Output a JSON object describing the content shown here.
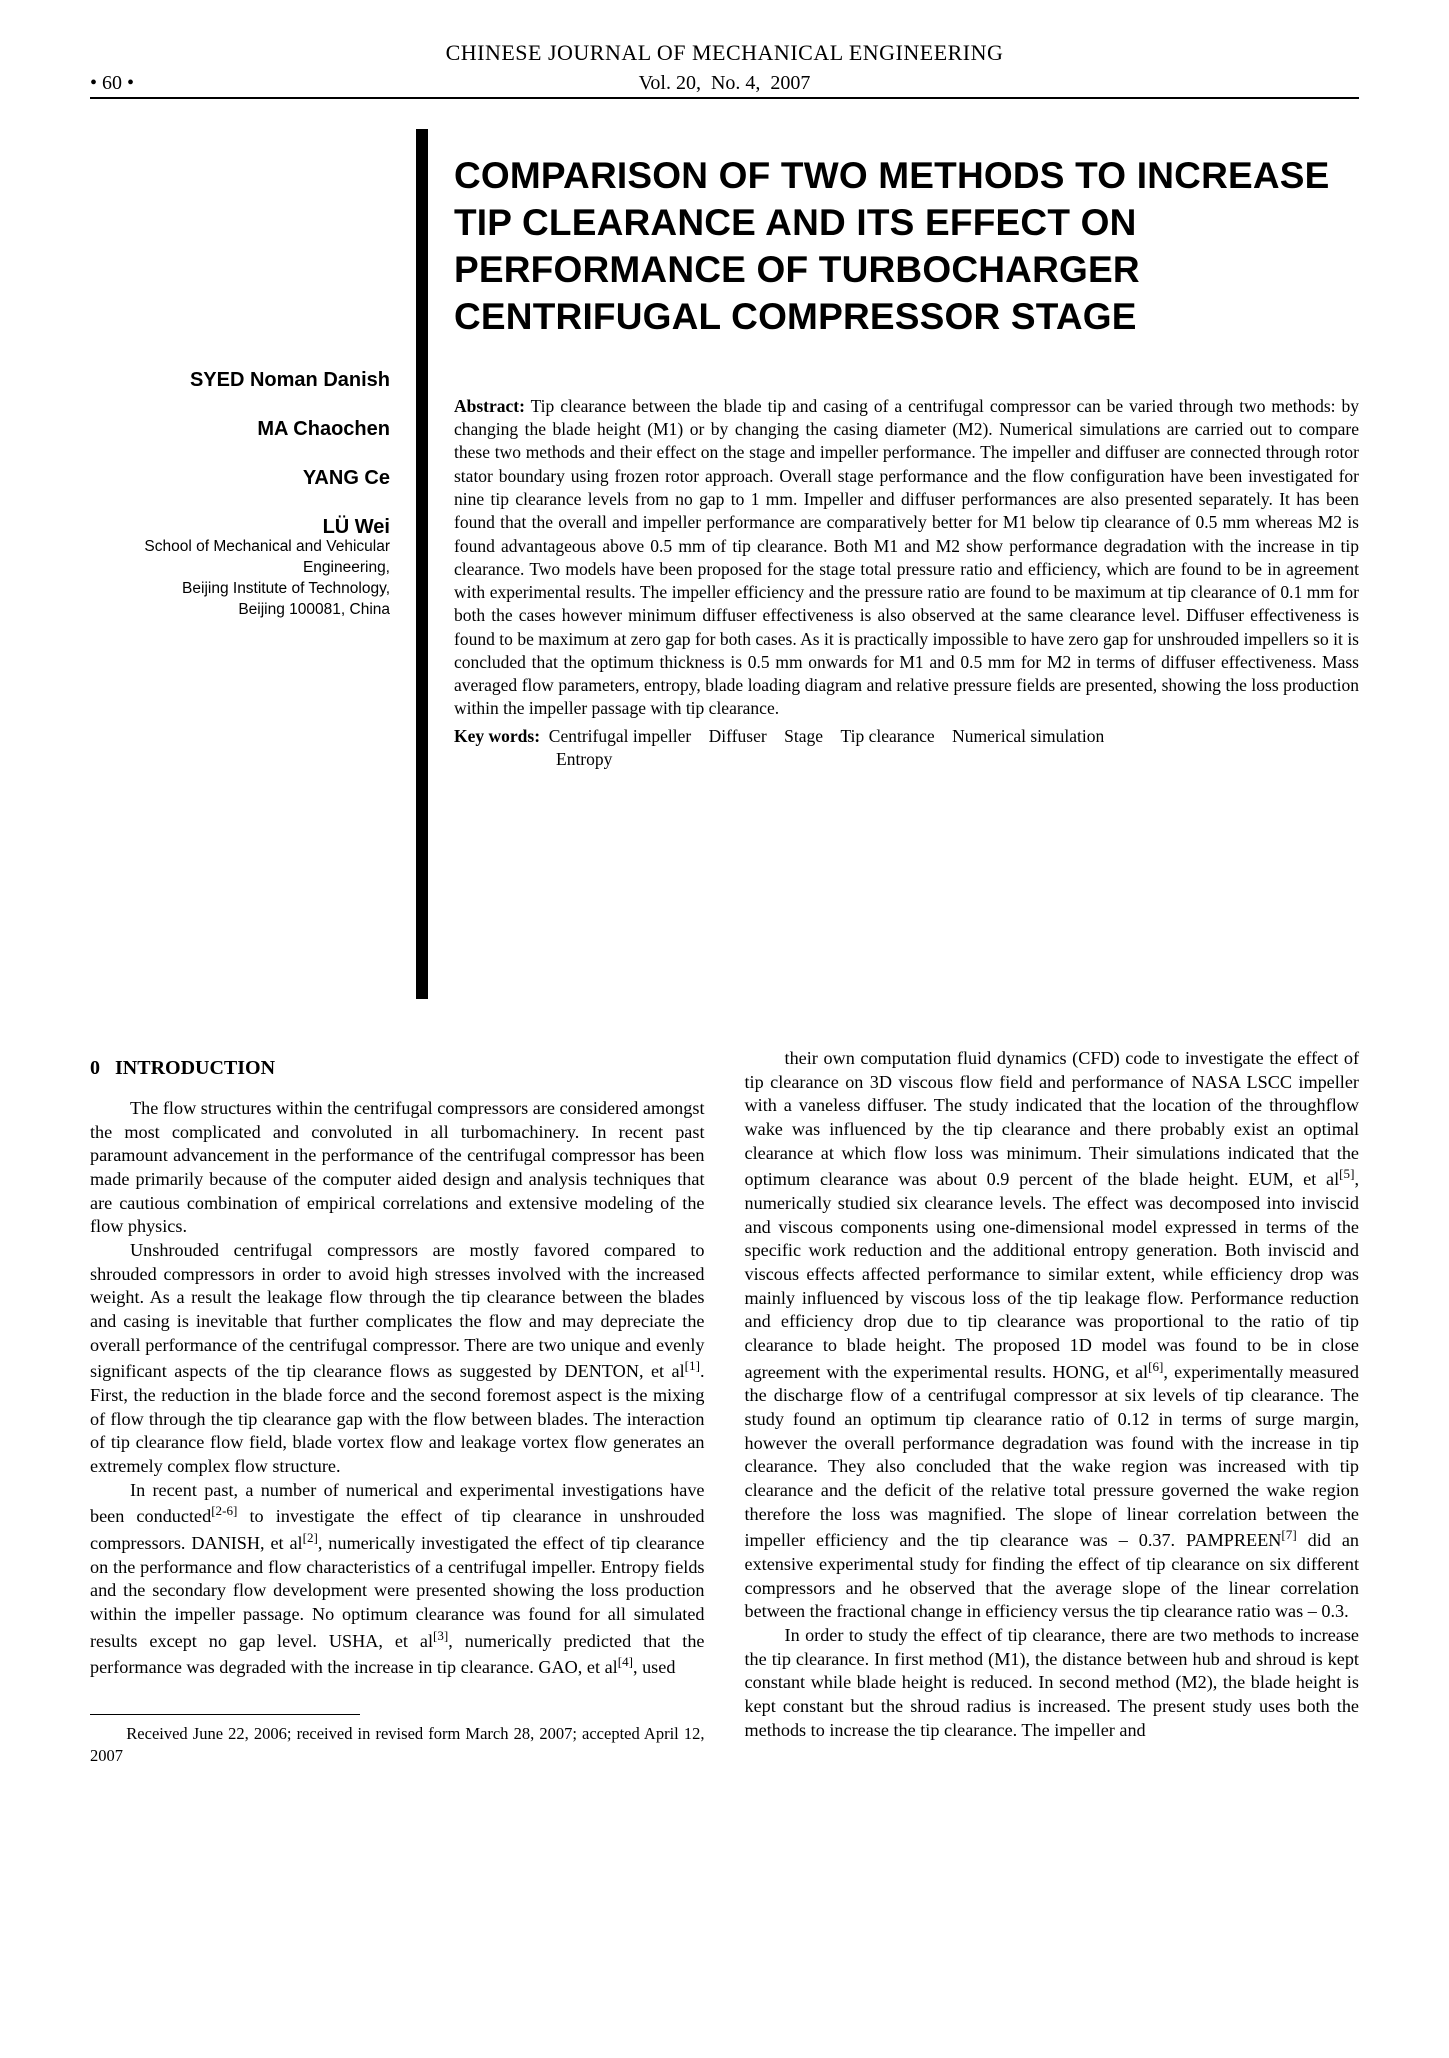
{
  "header": {
    "journal": "CHINESE JOURNAL OF MECHANICAL ENGINEERING",
    "page": "• 60 •",
    "volume": "Vol. 20,  No. 4,  2007"
  },
  "authors": {
    "a1": "SYED Noman Danish",
    "a2": "MA Chaochen",
    "a3": "YANG Ce",
    "a4": "LÜ Wei",
    "affil1": "School of Mechanical and Vehicular",
    "affil2": "Engineering,",
    "affil3": "Beijing Institute of Technology,",
    "affil4": "Beijing 100081, China"
  },
  "title": "COMPARISON OF TWO METHODS TO INCREASE TIP CLEARANCE AND ITS EFFECT ON PERFORMANCE OF TURBOCHARGER CENTRIFUGAL COMPRESSOR STAGE",
  "abstract": {
    "label": "Abstract:",
    "text": " Tip clearance between the blade tip and casing of a centrifugal compressor can be varied through two methods: by changing the blade height (M1) or by changing the casing diameter (M2). Numerical simulations are carried out to compare these two methods and their effect on the stage and impeller performance. The impeller and diffuser are connected through rotor stator boundary using frozen rotor approach. Overall stage performance and the flow configuration have been investigated for nine tip clearance levels from no gap to 1 mm. Impeller and diffuser performances are also presented separately. It has been found that the overall and impeller performance are comparatively better for M1 below tip clearance of 0.5 mm whereas M2 is found advantageous above 0.5 mm of tip clearance. Both M1 and M2 show performance degradation with the increase in tip clearance. Two models have been proposed for the stage total pressure ratio and efficiency, which are found to be in agreement with experimental results. The impeller efficiency and the pressure ratio are found to be maximum at tip clearance of 0.1 mm for both the cases however minimum diffuser effectiveness is also observed at the same clearance level. Diffuser effectiveness is found to be maximum at zero gap for both cases. As it is practically impossible to have zero gap for unshrouded impellers so it is concluded that the optimum thickness is 0.5 mm onwards for M1 and 0.5 mm for M2 in terms of diffuser effectiveness. Mass averaged flow parameters, entropy, blade loading diagram and relative pressure fields are presented, showing the loss production within the impeller passage with tip clearance."
  },
  "keywords": {
    "label": "Key words:",
    "line1": "  Centrifugal impeller    Diffuser    Stage    Tip clearance    Numerical simulation",
    "line2": "Entropy"
  },
  "section": {
    "num": "0",
    "heading": "INTRODUCTION"
  },
  "body": {
    "left_p1": "The flow structures within the centrifugal compressors are considered amongst the most complicated and convoluted in all turbomachinery. In recent past paramount advancement in the performance of the centrifugal compressor has been made primarily because of the computer aided design and analysis techniques that are cautious combination of empirical correlations and extensive modeling of the flow physics.",
    "left_p2": "Unshrouded centrifugal compressors are mostly favored compared to shrouded compressors in order to avoid high stresses involved with the increased weight. As a result the leakage flow through the tip clearance between the blades and casing is inevitable that further complicates the flow and may depreciate the overall performance of the centrifugal compressor. There are two unique and evenly significant aspects of the tip clearance flows as suggested by DENTON, et al[1]. First, the reduction in the blade force and the second foremost aspect is the mixing of flow through the tip clearance gap with the flow between blades. The interaction of tip clearance flow field, blade vortex flow and leakage vortex flow generates an extremely complex flow structure.",
    "left_p3": "In recent past, a number of numerical and experimental investigations have been conducted[2-6] to investigate the effect of tip clearance in unshrouded compressors. DANISH, et al[2], numerically investigated the effect of tip clearance on the performance and flow characteristics of a centrifugal impeller. Entropy fields and the secondary flow development were presented showing the loss production within the impeller passage. No optimum clearance was found for all simulated results except no gap level. USHA, et al[3], numerically predicted that the performance was degraded with the increase in tip clearance. GAO, et al[4], used",
    "right_p1": "their own computation fluid dynamics (CFD) code to investigate the effect of tip clearance on 3D viscous flow field and performance of NASA LSCC impeller with a vaneless diffuser. The study indicated that the location of the throughflow wake was influenced by the tip clearance and there probably exist an optimal clearance at which flow loss was minimum. Their simulations indicated that the optimum clearance was about 0.9 percent of the blade height. EUM, et al[5], numerically studied six clearance levels. The effect was decomposed into inviscid and viscous components using one-dimensional model expressed in terms of the specific work reduction and the additional entropy generation. Both inviscid and viscous effects affected performance to similar extent, while efficiency drop was mainly influenced by viscous loss of the tip leakage flow. Performance reduction and efficiency drop due to tip clearance was proportional to the ratio of tip clearance to blade height. The proposed 1D model was found to be in close agreement with the experimental results. HONG, et al[6], experimentally measured the discharge flow of a centrifugal compressor at six levels of tip clearance. The study found an optimum tip clearance ratio of 0.12 in terms of surge margin, however the overall performance degradation was found with the increase in tip clearance. They also concluded that the wake region was increased with tip clearance and the deficit of the relative total pressure governed the wake region therefore the loss was magnified. The slope of linear correlation between the impeller efficiency and the tip clearance was – 0.37. PAMPREEN[7] did an extensive experimental study for finding the effect of tip clearance on six different compressors and he observed that the average slope of the linear correlation between the fractional change in efficiency versus the tip clearance ratio was – 0.3.",
    "right_p2": "In order to study the effect of tip clearance, there are two methods to increase the tip clearance. In first method (M1), the distance between hub and shroud is kept constant while blade height is reduced. In second method (M2), the blade height is kept constant but the shroud radius is increased. The present study uses both the methods to increase the tip clearance. The impeller and"
  },
  "footnote": "Received June 22, 2006; received in revised form March 28, 2007; accepted April 12, 2007"
}
